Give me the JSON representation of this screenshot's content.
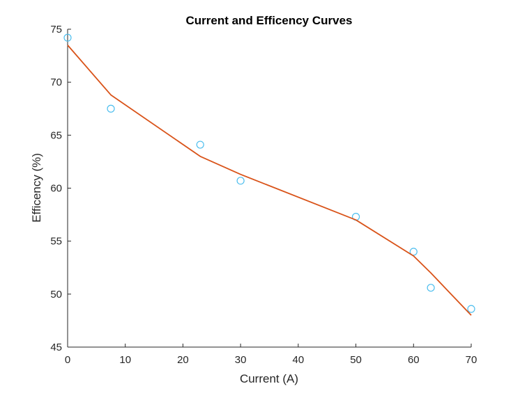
{
  "chart_data": {
    "type": "scatter",
    "title": "Current and Efficency Curves",
    "xlabel": "Current (A)",
    "ylabel": "Efficency (%)",
    "xlim": [
      0,
      70
    ],
    "ylim": [
      45,
      75
    ],
    "xticks": [
      "0",
      "10",
      "20",
      "30",
      "40",
      "50",
      "60",
      "70"
    ],
    "yticks": [
      "45",
      "50",
      "55",
      "60",
      "65",
      "70",
      "75"
    ],
    "grid": false,
    "series": [
      {
        "kind": "markers",
        "marker": "circle",
        "color": "#4DBEEE",
        "x": [
          0,
          7.5,
          23,
          30,
          50,
          60,
          63,
          70
        ],
        "y": [
          74.2,
          67.5,
          64.1,
          60.7,
          57.3,
          54.0,
          50.6,
          48.6
        ]
      },
      {
        "kind": "line",
        "color": "#D95319",
        "x": [
          0,
          7.5,
          23,
          30,
          50,
          60,
          63,
          70
        ],
        "y": [
          73.5,
          68.8,
          63.0,
          61.3,
          57.0,
          53.6,
          52.0,
          48.0
        ]
      }
    ]
  }
}
